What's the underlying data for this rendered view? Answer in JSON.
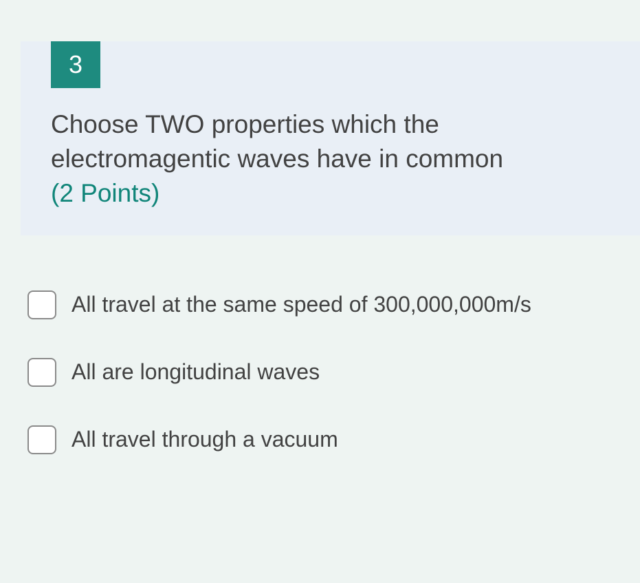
{
  "question": {
    "number": "3",
    "text": "Choose TWO properties which the electromagentic waves have in common",
    "points_label": "(2 Points)"
  },
  "options": [
    {
      "label": "All travel at the same speed of 300,000,000m/s"
    },
    {
      "label": "All are longitudinal waves"
    },
    {
      "label": "All travel through a vacuum"
    }
  ],
  "colors": {
    "page_bg": "#eef4f2",
    "header_bg": "#e9eff6",
    "badge_bg": "#1e8b7f",
    "badge_fg": "#ffffff",
    "accent": "#108579",
    "text": "#424242",
    "checkbox_border": "#8a8a8a"
  }
}
